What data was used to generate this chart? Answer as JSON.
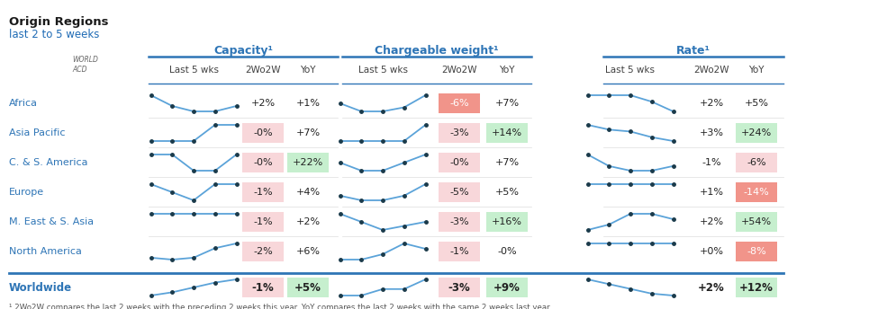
{
  "title": "Origin Regions",
  "subtitle": "last 2 to 5 weeks",
  "footnote": "¹ 2Wo2W compares the last 2 weeks with the preceding 2 weeks this year. YoY compares the last 2 weeks with the same 2 weeks last year.",
  "sections": [
    "Capacity¹",
    "Chargeable weight¹",
    "Rate¹"
  ],
  "col_headers": [
    "Last 5 wks",
    "2Wo2W",
    "YoY"
  ],
  "regions": [
    "Africa",
    "Asia Pacific",
    "C. & S. America",
    "Europe",
    "M. East & S. Asia",
    "North America",
    "Worldwide"
  ],
  "capacity": {
    "2wo2w": [
      "+2%",
      "-0%",
      "-0%",
      "-1%",
      "-1%",
      "-2%",
      "-1%"
    ],
    "yoy": [
      "+1%",
      "+7%",
      "+22%",
      "+4%",
      "+2%",
      "+6%",
      "+5%"
    ],
    "2wo2w_bg": [
      "none",
      "pink",
      "pink",
      "pink",
      "pink",
      "pink",
      "pink"
    ],
    "yoy_bg": [
      "none",
      "none",
      "green",
      "none",
      "none",
      "none",
      "green"
    ]
  },
  "chargeable": {
    "2wo2w": [
      "-6%",
      "-3%",
      "-0%",
      "-5%",
      "-3%",
      "-1%",
      "-3%"
    ],
    "yoy": [
      "+7%",
      "+14%",
      "+7%",
      "+5%",
      "+16%",
      "-0%",
      "+9%"
    ],
    "2wo2w_bg": [
      "red",
      "pink",
      "pink",
      "pink",
      "pink",
      "pink",
      "pink"
    ],
    "yoy_bg": [
      "none",
      "green",
      "none",
      "none",
      "green",
      "none",
      "green"
    ]
  },
  "rate": {
    "2wo2w": [
      "+2%",
      "+3%",
      "-1%",
      "+1%",
      "+2%",
      "+0%",
      "+2%"
    ],
    "yoy": [
      "+5%",
      "+24%",
      "-6%",
      "-14%",
      "+54%",
      "-8%",
      "+12%"
    ],
    "2wo2w_bg": [
      "none",
      "none",
      "none",
      "none",
      "none",
      "none",
      "none"
    ],
    "yoy_bg": [
      "none",
      "green",
      "pink",
      "red",
      "green",
      "red",
      "green"
    ]
  },
  "capacity_sparklines": [
    [
      1,
      2,
      2.5,
      2.5,
      2
    ],
    [
      2,
      2,
      2,
      1.5,
      1.5
    ],
    [
      1,
      1,
      1.2,
      1.2,
      1
    ],
    [
      2,
      2.1,
      2.2,
      2,
      2
    ],
    [
      2,
      2,
      2,
      2,
      2
    ],
    [
      2,
      2.2,
      2,
      1,
      0.5
    ],
    [
      2,
      1.8,
      1.5,
      1.2,
      1
    ]
  ],
  "chargeable_sparklines": [
    [
      3,
      4,
      4,
      3.5,
      2
    ],
    [
      2,
      2,
      2,
      2,
      1.8
    ],
    [
      2,
      2.2,
      2.2,
      2,
      1.8
    ],
    [
      2,
      2.2,
      2.2,
      2,
      1.5
    ],
    [
      1,
      2,
      3,
      2.5,
      2
    ],
    [
      2,
      2,
      1.5,
      0.5,
      1
    ],
    [
      2,
      2,
      1.8,
      1.8,
      1.5
    ]
  ],
  "rate_sparklines": [
    [
      2,
      2,
      2,
      2.2,
      2.5
    ],
    [
      0.5,
      1,
      1.2,
      1.8,
      2.2
    ],
    [
      1.5,
      2,
      2.2,
      2.2,
      2
    ],
    [
      2,
      2,
      2,
      2,
      2
    ],
    [
      2,
      1.5,
      0.5,
      0.5,
      1
    ],
    [
      2,
      2,
      2,
      2,
      2
    ],
    [
      0.5,
      1,
      1.5,
      2,
      2.2
    ]
  ],
  "colors": {
    "title_black": "#1A1A1A",
    "header_blue": "#1F6BB5",
    "region_text": "#2E75B6",
    "section_header": "#2E75B6",
    "subheader_text": "#404040",
    "pink_bg": "#F8D7DA",
    "red_bg": "#F1948A",
    "green_bg": "#C6EFCE",
    "sparkline_color": "#5BA3D9",
    "dot_color": "#1A3A4A",
    "divider_blue": "#2E75B6",
    "divider_light": "#AAAAAA",
    "background": "#FFFFFF",
    "footnote": "#555555"
  }
}
